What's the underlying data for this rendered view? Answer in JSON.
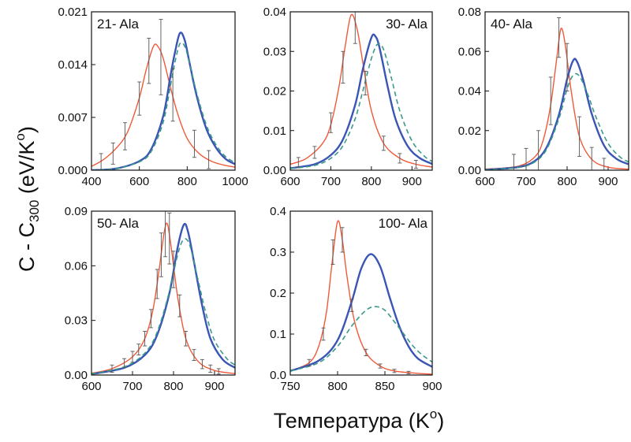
{
  "figure": {
    "ylabel": {
      "main": "C - C",
      "sub": "300",
      "unit_open": " (eV/K",
      "unit_sup": "o",
      "unit_close": ")"
    },
    "xlabel": {
      "main": "Температура (K",
      "sup": "o",
      "close": ")"
    }
  },
  "colors": {
    "red": "#ef5a3a",
    "blue": "#3a55b4",
    "green": "#3a9a8a",
    "errorbar": "#555555"
  },
  "chart_data": [
    {
      "type": "line",
      "title": "21- Ala",
      "xlim": [
        400,
        1000
      ],
      "ylim": [
        0,
        0.021
      ],
      "xticks": [
        "400",
        "600",
        "800",
        "1000"
      ],
      "xtick_values": [
        400,
        600,
        800,
        1000
      ],
      "yticks": [
        "0.000",
        "0.007",
        "0.014",
        "0.021"
      ],
      "ytick_values": [
        0,
        0.007,
        0.014,
        0.021
      ],
      "series": [
        {
          "color": "red",
          "style": "solid",
          "x": [
            400,
            450,
            500,
            550,
            600,
            630,
            660,
            680,
            700,
            730,
            760,
            800,
            850,
            900,
            950,
            1000
          ],
          "y": [
            0.0005,
            0.0014,
            0.0028,
            0.005,
            0.0096,
            0.0135,
            0.0165,
            0.0163,
            0.0148,
            0.011,
            0.0075,
            0.0042,
            0.0022,
            0.0012,
            0.0007,
            0.0004
          ]
        },
        {
          "color": "blue",
          "style": "solid",
          "x": [
            400,
            500,
            600,
            650,
            700,
            730,
            750,
            770,
            790,
            810,
            840,
            880,
            920,
            960,
            1000
          ],
          "y": [
            0,
            0.0002,
            0.0012,
            0.0028,
            0.0072,
            0.0125,
            0.0158,
            0.0182,
            0.0172,
            0.0142,
            0.0098,
            0.0055,
            0.003,
            0.0015,
            0.0008
          ]
        },
        {
          "color": "green",
          "style": "dashed",
          "x": [
            400,
            500,
            600,
            650,
            700,
            730,
            750,
            770,
            790,
            810,
            840,
            880,
            920,
            960,
            1000
          ],
          "y": [
            0,
            0.0002,
            0.0011,
            0.0025,
            0.0064,
            0.0112,
            0.0145,
            0.0168,
            0.0164,
            0.0142,
            0.0102,
            0.006,
            0.0034,
            0.0018,
            0.001
          ]
        }
      ],
      "errorbars": [
        {
          "x": 440,
          "y": 0.001,
          "err": 0.0012
        },
        {
          "x": 490,
          "y": 0.0022,
          "err": 0.0014
        },
        {
          "x": 540,
          "y": 0.0045,
          "err": 0.0018
        },
        {
          "x": 600,
          "y": 0.0095,
          "err": 0.0022
        },
        {
          "x": 640,
          "y": 0.0145,
          "err": 0.003
        },
        {
          "x": 690,
          "y": 0.015,
          "err": 0.005
        },
        {
          "x": 740,
          "y": 0.01,
          "err": 0.0035
        },
        {
          "x": 830,
          "y": 0.0035,
          "err": 0.0018
        },
        {
          "x": 890,
          "y": 0.0014,
          "err": 0.0012
        }
      ]
    },
    {
      "type": "line",
      "title": "30- Ala",
      "xlim": [
        600,
        950
      ],
      "ylim": [
        0,
        0.04
      ],
      "xticks": [
        "600",
        "700",
        "800",
        "900"
      ],
      "xtick_values": [
        600,
        700,
        800,
        900
      ],
      "yticks": [
        "0.00",
        "0.01",
        "0.02",
        "0.03",
        "0.04"
      ],
      "ytick_values": [
        0,
        0.01,
        0.02,
        0.03,
        0.04
      ],
      "series": [
        {
          "color": "red",
          "style": "solid",
          "x": [
            600,
            640,
            680,
            700,
            720,
            735,
            750,
            765,
            780,
            800,
            830,
            870,
            910,
            950
          ],
          "y": [
            0.0015,
            0.003,
            0.0068,
            0.0115,
            0.021,
            0.031,
            0.0392,
            0.0355,
            0.0265,
            0.015,
            0.0068,
            0.003,
            0.0015,
            0.0008
          ]
        },
        {
          "color": "blue",
          "style": "solid",
          "x": [
            600,
            660,
            700,
            730,
            760,
            780,
            800,
            810,
            820,
            840,
            860,
            890,
            920,
            950
          ],
          "y": [
            0.0005,
            0.0015,
            0.0038,
            0.0078,
            0.0165,
            0.026,
            0.0335,
            0.0338,
            0.031,
            0.0212,
            0.0128,
            0.006,
            0.003,
            0.0016
          ]
        },
        {
          "color": "green",
          "style": "dashed",
          "x": [
            600,
            660,
            700,
            730,
            760,
            780,
            800,
            815,
            830,
            850,
            870,
            900,
            930,
            950
          ],
          "y": [
            0.0004,
            0.0012,
            0.003,
            0.0062,
            0.013,
            0.0205,
            0.0282,
            0.0318,
            0.0305,
            0.023,
            0.015,
            0.0074,
            0.0036,
            0.0022
          ]
        }
      ],
      "errorbars": [
        {
          "x": 620,
          "y": 0.002,
          "err": 0.0012
        },
        {
          "x": 660,
          "y": 0.0045,
          "err": 0.0015
        },
        {
          "x": 700,
          "y": 0.012,
          "err": 0.0025
        },
        {
          "x": 730,
          "y": 0.026,
          "err": 0.004
        },
        {
          "x": 760,
          "y": 0.036,
          "err": 0.004
        },
        {
          "x": 785,
          "y": 0.022,
          "err": 0.003
        },
        {
          "x": 830,
          "y": 0.0068,
          "err": 0.0018
        },
        {
          "x": 870,
          "y": 0.003,
          "err": 0.0012
        },
        {
          "x": 910,
          "y": 0.0015,
          "err": 0.001
        }
      ]
    },
    {
      "type": "line",
      "title": "40- Ala",
      "xlim": [
        600,
        950
      ],
      "ylim": [
        0,
        0.08
      ],
      "xticks": [
        "600",
        "700",
        "800",
        "900"
      ],
      "xtick_values": [
        600,
        700,
        800,
        900
      ],
      "yticks": [
        "0.00",
        "0.02",
        "0.04",
        "0.06",
        "0.08"
      ],
      "ytick_values": [
        0,
        0.02,
        0.04,
        0.06,
        0.08
      ],
      "series": [
        {
          "color": "red",
          "style": "solid",
          "x": [
            600,
            680,
            720,
            740,
            760,
            775,
            785,
            795,
            810,
            830,
            860,
            900,
            950
          ],
          "y": [
            0.0005,
            0.002,
            0.0065,
            0.014,
            0.033,
            0.057,
            0.0715,
            0.064,
            0.04,
            0.017,
            0.0055,
            0.0015,
            0.0005
          ]
        },
        {
          "color": "blue",
          "style": "solid",
          "x": [
            600,
            680,
            720,
            750,
            780,
            800,
            815,
            825,
            840,
            860,
            890,
            920,
            950
          ],
          "y": [
            0.0002,
            0.0015,
            0.0045,
            0.0115,
            0.028,
            0.046,
            0.0555,
            0.0545,
            0.045,
            0.0285,
            0.0125,
            0.0058,
            0.003
          ]
        },
        {
          "color": "green",
          "style": "dashed",
          "x": [
            600,
            680,
            720,
            750,
            780,
            800,
            815,
            830,
            850,
            870,
            900,
            930,
            950
          ],
          "y": [
            0.0002,
            0.0013,
            0.004,
            0.0105,
            0.026,
            0.041,
            0.048,
            0.0475,
            0.0385,
            0.027,
            0.0135,
            0.0065,
            0.0042
          ]
        }
      ],
      "errorbars": [
        {
          "x": 670,
          "y": 0.002,
          "err": 0.006
        },
        {
          "x": 700,
          "y": 0.004,
          "err": 0.007
        },
        {
          "x": 730,
          "y": 0.01,
          "err": 0.01
        },
        {
          "x": 760,
          "y": 0.035,
          "err": 0.012
        },
        {
          "x": 780,
          "y": 0.067,
          "err": 0.01
        },
        {
          "x": 800,
          "y": 0.052,
          "err": 0.012
        },
        {
          "x": 830,
          "y": 0.017,
          "err": 0.01
        },
        {
          "x": 860,
          "y": 0.0055,
          "err": 0.006
        },
        {
          "x": 890,
          "y": 0.002,
          "err": 0.004
        }
      ]
    },
    {
      "type": "line",
      "title": "50- Ala",
      "xlim": [
        600,
        950
      ],
      "ylim": [
        0,
        0.09
      ],
      "xticks": [
        "600",
        "700",
        "800",
        "900"
      ],
      "xtick_values": [
        600,
        700,
        800,
        900
      ],
      "yticks": [
        "0.00",
        "0.03",
        "0.06",
        "0.09"
      ],
      "ytick_values": [
        0,
        0.03,
        0.06,
        0.09
      ],
      "series": [
        {
          "color": "red",
          "style": "solid",
          "x": [
            600,
            650,
            700,
            730,
            750,
            765,
            777,
            785,
            795,
            810,
            830,
            860,
            900,
            950
          ],
          "y": [
            0.001,
            0.0035,
            0.01,
            0.02,
            0.036,
            0.058,
            0.078,
            0.083,
            0.069,
            0.043,
            0.02,
            0.0075,
            0.0025,
            0.0008
          ]
        },
        {
          "color": "blue",
          "style": "solid",
          "x": [
            600,
            680,
            730,
            760,
            790,
            810,
            825,
            835,
            850,
            870,
            890,
            920,
            950
          ],
          "y": [
            0.0005,
            0.004,
            0.011,
            0.022,
            0.045,
            0.07,
            0.0825,
            0.079,
            0.062,
            0.038,
            0.02,
            0.0085,
            0.004
          ]
        },
        {
          "color": "green",
          "style": "dashed",
          "x": [
            600,
            680,
            730,
            760,
            790,
            810,
            825,
            840,
            860,
            880,
            900,
            930,
            950
          ],
          "y": [
            0.0006,
            0.0045,
            0.012,
            0.0235,
            0.046,
            0.066,
            0.0745,
            0.071,
            0.052,
            0.033,
            0.019,
            0.009,
            0.0055
          ]
        }
      ],
      "errorbars": [
        {
          "x": 650,
          "y": 0.0035,
          "err": 0.002
        },
        {
          "x": 680,
          "y": 0.0065,
          "err": 0.0025
        },
        {
          "x": 700,
          "y": 0.01,
          "err": 0.003
        },
        {
          "x": 715,
          "y": 0.014,
          "err": 0.003
        },
        {
          "x": 730,
          "y": 0.02,
          "err": 0.004
        },
        {
          "x": 745,
          "y": 0.031,
          "err": 0.005
        },
        {
          "x": 760,
          "y": 0.05,
          "err": 0.008
        },
        {
          "x": 770,
          "y": 0.066,
          "err": 0.012
        },
        {
          "x": 780,
          "y": 0.08,
          "err": 0.015
        },
        {
          "x": 790,
          "y": 0.075,
          "err": 0.014
        },
        {
          "x": 800,
          "y": 0.058,
          "err": 0.01
        },
        {
          "x": 815,
          "y": 0.038,
          "err": 0.006
        },
        {
          "x": 830,
          "y": 0.02,
          "err": 0.004
        },
        {
          "x": 850,
          "y": 0.011,
          "err": 0.003
        },
        {
          "x": 870,
          "y": 0.006,
          "err": 0.0025
        },
        {
          "x": 890,
          "y": 0.0035,
          "err": 0.002
        },
        {
          "x": 910,
          "y": 0.002,
          "err": 0.0015
        }
      ]
    },
    {
      "type": "line",
      "title": "100- Ala",
      "xlim": [
        750,
        900
      ],
      "ylim": [
        0,
        0.4
      ],
      "xticks": [
        "750",
        "800",
        "850",
        "900"
      ],
      "xtick_values": [
        750,
        800,
        850,
        900
      ],
      "yticks": [
        "0.0",
        "0.1",
        "0.2",
        "0.3",
        "0.4"
      ],
      "ytick_values": [
        0,
        0.1,
        0.2,
        0.3,
        0.4
      ],
      "series": [
        {
          "color": "red",
          "style": "solid",
          "x": [
            750,
            770,
            780,
            788,
            794,
            800,
            805,
            810,
            818,
            830,
            845,
            860,
            880,
            900
          ],
          "y": [
            0.01,
            0.03,
            0.07,
            0.15,
            0.27,
            0.375,
            0.33,
            0.24,
            0.13,
            0.055,
            0.022,
            0.01,
            0.005,
            0.002
          ]
        },
        {
          "color": "blue",
          "style": "solid",
          "x": [
            750,
            780,
            800,
            815,
            825,
            835,
            845,
            855,
            865,
            875,
            885,
            900
          ],
          "y": [
            0.01,
            0.035,
            0.085,
            0.18,
            0.26,
            0.295,
            0.265,
            0.19,
            0.12,
            0.07,
            0.04,
            0.02
          ]
        },
        {
          "color": "green",
          "style": "dashed",
          "x": [
            750,
            780,
            800,
            815,
            830,
            840,
            850,
            860,
            870,
            880,
            890,
            900
          ],
          "y": [
            0.01,
            0.03,
            0.07,
            0.12,
            0.158,
            0.167,
            0.158,
            0.13,
            0.1,
            0.07,
            0.048,
            0.032
          ]
        }
      ],
      "errorbars": [
        {
          "x": 770,
          "y": 0.03,
          "err": 0.008
        },
        {
          "x": 785,
          "y": 0.1,
          "err": 0.015
        },
        {
          "x": 795,
          "y": 0.3,
          "err": 0.03
        },
        {
          "x": 805,
          "y": 0.33,
          "err": 0.03
        },
        {
          "x": 815,
          "y": 0.17,
          "err": 0.015
        },
        {
          "x": 830,
          "y": 0.055,
          "err": 0.008
        },
        {
          "x": 845,
          "y": 0.022,
          "err": 0.005
        },
        {
          "x": 860,
          "y": 0.01,
          "err": 0.004
        },
        {
          "x": 875,
          "y": 0.006,
          "err": 0.003
        }
      ]
    }
  ]
}
